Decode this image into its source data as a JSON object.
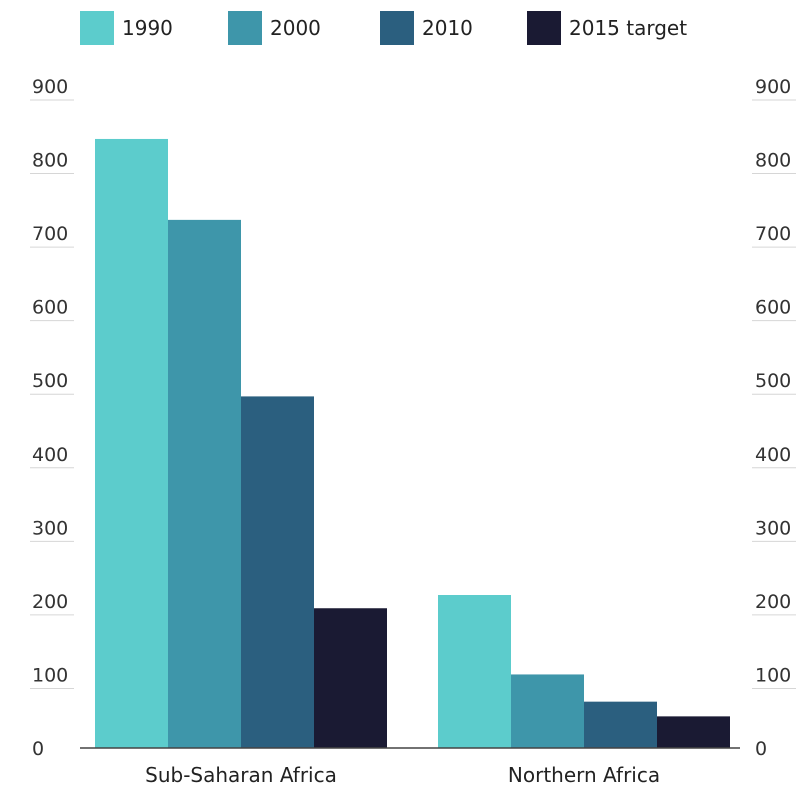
{
  "chart_data": {
    "type": "bar",
    "categories": [
      "Sub-Saharan Africa",
      "Northern Africa"
    ],
    "series": [
      {
        "name": "1990",
        "color": "#5ccccc",
        "values": [
          828,
          208
        ]
      },
      {
        "name": "2000",
        "color": "#3e96aa",
        "values": [
          718,
          100
        ]
      },
      {
        "name": "2010",
        "color": "#2b5f7f",
        "values": [
          478,
          63
        ]
      },
      {
        "name": "2015 target",
        "color": "#1a1a33",
        "values": [
          190,
          43
        ]
      }
    ],
    "ylim": [
      0,
      900
    ],
    "yticks": [
      "0",
      "100",
      "200",
      "300",
      "400",
      "500",
      "600",
      "700",
      "800",
      "900"
    ],
    "legend_position": "top",
    "grid": false,
    "dual_y_axis": true
  }
}
